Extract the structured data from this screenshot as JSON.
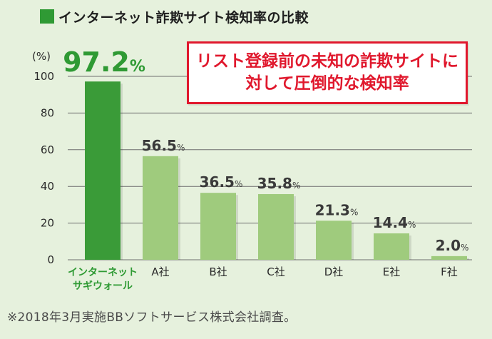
{
  "header": {
    "title": "インターネット詐欺サイト検知率の比較"
  },
  "callout": {
    "line1": "リスト登録前の未知の詐欺サイトに",
    "line2": "対して圧倒的な検知率"
  },
  "footnote": "※2018年3月実施BBソフトサービス株式会社調査。",
  "colors": {
    "highlight_bar": "#3a9b38",
    "other_bar": "#9fcb7d",
    "highlight_text": "#2f9a34",
    "callout_red": "#e0182d",
    "background": "#e6f1dd"
  },
  "chart_data": {
    "type": "bar",
    "title": "インターネット詐欺サイト検知率の比較",
    "xlabel": "",
    "ylabel": "(%)",
    "ylim": [
      0,
      100
    ],
    "yticks": [
      0,
      20,
      40,
      60,
      80,
      100
    ],
    "grid": true,
    "unit_suffix": "%",
    "categories": [
      "インターネットサギウォール",
      "A社",
      "B社",
      "C社",
      "D社",
      "E社",
      "F社"
    ],
    "category_lines": [
      [
        "インターネット",
        "サギウォール"
      ],
      [
        "A社"
      ],
      [
        "B社"
      ],
      [
        "C社"
      ],
      [
        "D社"
      ],
      [
        "E社"
      ],
      [
        "F社"
      ]
    ],
    "values": [
      97.2,
      56.5,
      36.5,
      35.8,
      21.3,
      14.4,
      2.0
    ],
    "value_labels": [
      "97.2",
      "56.5",
      "36.5",
      "35.8",
      "21.3",
      "14.4",
      "2.0"
    ],
    "highlight_index": 0
  }
}
